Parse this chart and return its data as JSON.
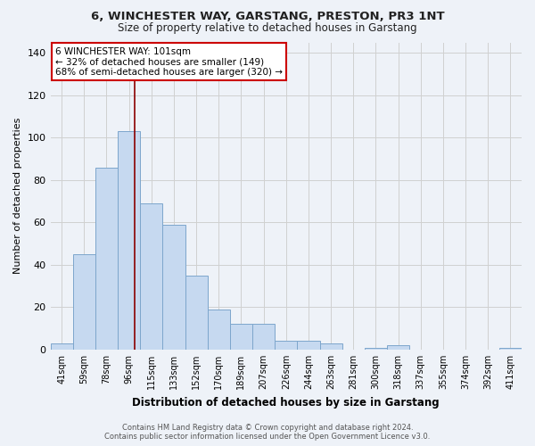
{
  "title": "6, WINCHESTER WAY, GARSTANG, PRESTON, PR3 1NT",
  "subtitle": "Size of property relative to detached houses in Garstang",
  "xlabel": "Distribution of detached houses by size in Garstang",
  "ylabel": "Number of detached properties",
  "footer_line1": "Contains HM Land Registry data © Crown copyright and database right 2024.",
  "footer_line2": "Contains public sector information licensed under the Open Government Licence v3.0.",
  "categories": [
    "41sqm",
    "59sqm",
    "78sqm",
    "96sqm",
    "115sqm",
    "133sqm",
    "152sqm",
    "170sqm",
    "189sqm",
    "207sqm",
    "226sqm",
    "244sqm",
    "263sqm",
    "281sqm",
    "300sqm",
    "318sqm",
    "337sqm",
    "355sqm",
    "374sqm",
    "392sqm",
    "411sqm"
  ],
  "values": [
    3,
    45,
    86,
    103,
    69,
    59,
    35,
    19,
    12,
    12,
    4,
    4,
    3,
    0,
    1,
    2,
    0,
    0,
    0,
    0,
    1
  ],
  "bar_color": "#c6d9f0",
  "bar_edge_color": "#7da6cc",
  "grid_color": "#d0d0d0",
  "property_label": "6 WINCHESTER WAY: 101sqm",
  "annotation_line1": "← 32% of detached houses are smaller (149)",
  "annotation_line2": "68% of semi-detached houses are larger (320) →",
  "vline_color": "#8b0000",
  "annotation_box_color": "#ffffff",
  "annotation_box_edge": "#cc0000",
  "vline_x": 3.263,
  "ylim": [
    0,
    145
  ],
  "yticks": [
    0,
    20,
    40,
    60,
    80,
    100,
    120,
    140
  ],
  "background_color": "#eef2f8"
}
